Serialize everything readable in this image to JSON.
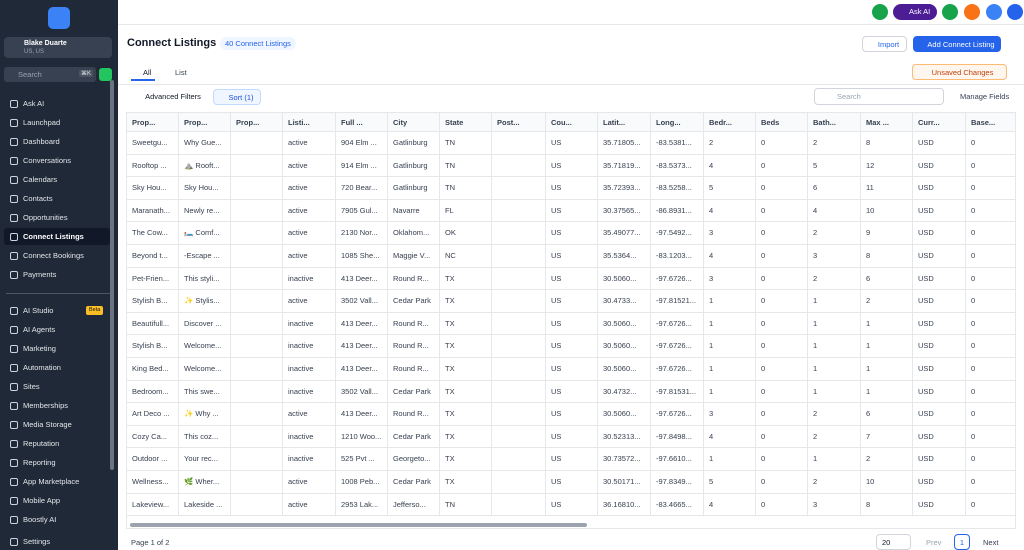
{
  "sidebar": {
    "account": {
      "name": "Blake Duarte",
      "location": "US, US"
    },
    "search": {
      "placeholder": "Search",
      "shortcut": "⌘K"
    },
    "items": [
      "Ask AI",
      "Launchpad",
      "Dashboard",
      "Conversations",
      "Calendars",
      "Contacts",
      "Opportunities",
      "Connect Listings",
      "Connect Bookings",
      "Payments"
    ],
    "items2": [
      "AI Studio",
      "AI Agents",
      "Marketing",
      "Automation",
      "Sites",
      "Memberships",
      "Media Storage",
      "Reputation",
      "Reporting",
      "App Marketplace",
      "Mobile App",
      "Boostly AI"
    ],
    "beta": "Beta",
    "settings": "Settings"
  },
  "topbar": {
    "ask_ai": "Ask AI"
  },
  "header": {
    "title": "Connect Listings",
    "count": "40 Connect Listings",
    "import": "Import",
    "add": "Add Connect Listing"
  },
  "tabs": [
    "All",
    "List"
  ],
  "unsaved": "Unsaved Changes",
  "toolbar": {
    "filters": "Advanced Filters",
    "sort": "Sort (1)",
    "search": "Search",
    "manage": "Manage Fields"
  },
  "table": {
    "columns": [
      "Prop...",
      "Prop...",
      "Prop...",
      "Listi...",
      "Full ...",
      "City",
      "State",
      "Post...",
      "Cou...",
      "Latit...",
      "Long...",
      "Bedr...",
      "Beds",
      "Bath...",
      "Max ...",
      "Curr...",
      "Base..."
    ],
    "rows": [
      [
        "Sweetgu...",
        "Why Gue...",
        null,
        "active",
        "904 Elm ...",
        "Gatlinburg",
        "TN",
        null,
        "US",
        "35.71805...",
        "-83.5381...",
        2,
        0,
        2,
        8,
        "USD",
        0
      ],
      [
        "Rooftop ...",
        "⛰️ Rooft...",
        null,
        "active",
        "914 Elm ...",
        "Gatlinburg",
        "TN",
        null,
        "US",
        "35.71819...",
        "-83.5373...",
        4,
        0,
        5,
        12,
        "USD",
        0
      ],
      [
        "Sky Hou...",
        "Sky Hou...",
        null,
        "active",
        "720 Bear...",
        "Gatlinburg",
        "TN",
        null,
        "US",
        "35.72393...",
        "-83.5258...",
        5,
        0,
        6,
        11,
        "USD",
        0
      ],
      [
        "Maranath...",
        "Newly re...",
        null,
        "active",
        "7905 Gul...",
        "Navarre",
        "FL",
        null,
        "US",
        "30.37565...",
        "-86.8931...",
        4,
        0,
        4,
        10,
        "USD",
        0
      ],
      [
        "The Cow...",
        "🛏️ Comf...",
        null,
        "active",
        "2130 Nor...",
        "Oklahom...",
        "OK",
        null,
        "US",
        "35.49077...",
        "-97.5492...",
        3,
        0,
        2,
        9,
        "USD",
        0
      ],
      [
        "Beyond t...",
        "-Escape ...",
        null,
        "active",
        "1085 She...",
        "Maggie V...",
        "NC",
        null,
        "US",
        "35.5364...",
        "-83.1203...",
        4,
        0,
        3,
        8,
        "USD",
        0
      ],
      [
        "Pet-Frien...",
        "This styli...",
        null,
        "inactive",
        "413 Deer...",
        "Round R...",
        "TX",
        null,
        "US",
        "30.5060...",
        "-97.6726...",
        3,
        0,
        2,
        6,
        "USD",
        0
      ],
      [
        "Stylish B...",
        "✨ Stylis...",
        null,
        "active",
        "3502 Vall...",
        "Cedar Park",
        "TX",
        null,
        "US",
        "30.4733...",
        "-97.81521...",
        1,
        0,
        1,
        2,
        "USD",
        0
      ],
      [
        "Beautifull...",
        "Discover ...",
        null,
        "inactive",
        "413 Deer...",
        "Round R...",
        "TX",
        null,
        "US",
        "30.5060...",
        "-97.6726...",
        1,
        0,
        1,
        1,
        "USD",
        0
      ],
      [
        "Stylish B...",
        "Welcome...",
        null,
        "inactive",
        "413 Deer...",
        "Round R...",
        "TX",
        null,
        "US",
        "30.5060...",
        "-97.6726...",
        1,
        0,
        1,
        1,
        "USD",
        0
      ],
      [
        "King Bed...",
        "Welcome...",
        null,
        "inactive",
        "413 Deer...",
        "Round R...",
        "TX",
        null,
        "US",
        "30.5060...",
        "-97.6726...",
        1,
        0,
        1,
        1,
        "USD",
        0
      ],
      [
        "Bedroom...",
        "This swe...",
        null,
        "inactive",
        "3502 Vall...",
        "Cedar Park",
        "TX",
        null,
        "US",
        "30.4732...",
        "-97.81531...",
        1,
        0,
        1,
        1,
        "USD",
        0
      ],
      [
        "Art Deco ...",
        "✨ Why ...",
        null,
        "active",
        "413 Deer...",
        "Round R...",
        "TX",
        null,
        "US",
        "30.5060...",
        "-97.6726...",
        3,
        0,
        2,
        6,
        "USD",
        0
      ],
      [
        "Cozy Ca...",
        "This coz...",
        null,
        "inactive",
        "1210 Woo...",
        "Cedar Park",
        "TX",
        null,
        "US",
        "30.52313...",
        "-97.8498...",
        4,
        0,
        2,
        7,
        "USD",
        0
      ],
      [
        "Outdoor ...",
        "Your rec...",
        null,
        "inactive",
        "525 Pvt ...",
        "Georgeto...",
        "TX",
        null,
        "US",
        "30.73572...",
        "-97.6610...",
        1,
        0,
        1,
        2,
        "USD",
        0
      ],
      [
        "Wellness...",
        "🌿 Wher...",
        null,
        "active",
        "1008 Peb...",
        "Cedar Park",
        "TX",
        null,
        "US",
        "30.50171...",
        "-97.8349...",
        5,
        0,
        2,
        10,
        "USD",
        0
      ],
      [
        "Lakeview...",
        "Lakeside ...",
        null,
        "active",
        "2953 Lak...",
        "Jefferso...",
        "TN",
        null,
        "US",
        "36.16810...",
        "-83.4665...",
        4,
        0,
        3,
        8,
        "USD",
        0
      ]
    ]
  },
  "footer": {
    "page": "Page 1 of 2",
    "per_page": 20,
    "prev": "Prev",
    "current": 1,
    "next": "Next"
  }
}
